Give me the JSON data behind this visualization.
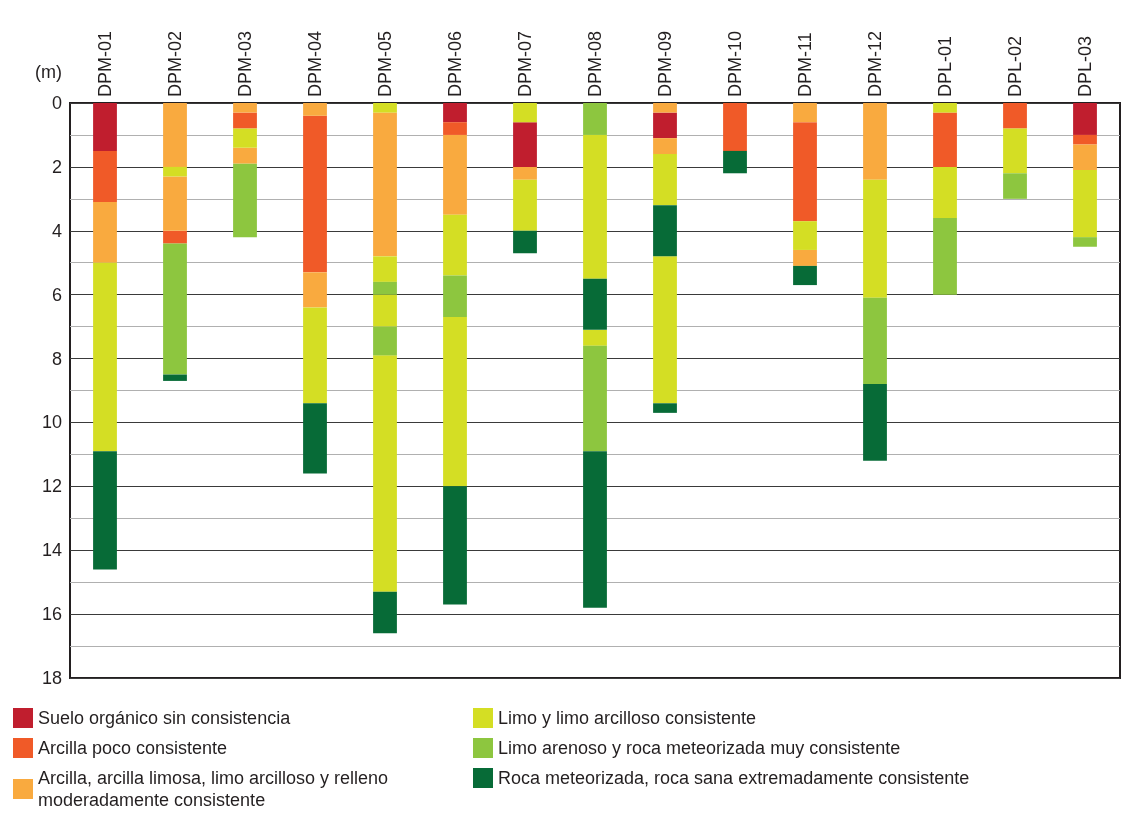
{
  "chart_data": {
    "type": "bar",
    "ylabel": "(m)",
    "categories": [
      "DPM-01",
      "DPM-02",
      "DPM-03",
      "DPM-04",
      "DPM-05",
      "DPM-06",
      "DPM-07",
      "DPM-08",
      "DPM-09",
      "DPM-10",
      "DPM-11",
      "DPM-12",
      "DPL-01",
      "DPL-02",
      "DPL-03"
    ],
    "ylim": [
      18,
      0
    ],
    "yticks": [
      0,
      {
        "value": 1,
        "label": null
      },
      2,
      {
        "value": 3,
        "label": null
      },
      4,
      {
        "value": 5,
        "label": null
      },
      6,
      {
        "value": 7,
        "label": null
      },
      8,
      {
        "value": 9,
        "label": null
      },
      10,
      {
        "value": 11,
        "label": null
      },
      12,
      {
        "value": 13,
        "label": null
      },
      14,
      {
        "value": 15,
        "label": null
      },
      16,
      {
        "value": 17,
        "label": null
      },
      18
    ],
    "grid": "y",
    "legend": "bottom",
    "series": [
      {
        "name": "Suelo orgánico sin consistencia",
        "color": "#c01e2e",
        "base": [
          0,
          null,
          null,
          null,
          null,
          0,
          0.6,
          null,
          0.3,
          null,
          null,
          null,
          null,
          null,
          0
        ],
        "values": [
          1.5,
          null,
          null,
          null,
          null,
          0.6,
          1.4,
          null,
          0.8,
          null,
          null,
          null,
          null,
          null,
          1.0
        ]
      },
      {
        "name": "Arcilla poco consistente",
        "color": "#f05a28",
        "base": [
          1.5,
          4.0,
          0.3,
          0.4,
          null,
          0.6,
          null,
          null,
          null,
          0,
          0.6,
          null,
          0.3,
          0,
          1.0
        ],
        "values": [
          1.6,
          0.4,
          0.5,
          4.9,
          null,
          0.4,
          null,
          null,
          null,
          1.5,
          3.1,
          null,
          1.7,
          0.8,
          0.3
        ]
      },
      {
        "name": "Arcilla, arcilla limosa, limo arcilloso y relleno moderadamente consistente",
        "color": "#f9aa3f",
        "base": [
          3.1,
          0,
          0,
          0,
          0.3,
          1.0,
          2.0,
          null,
          0,
          null,
          0,
          0,
          null,
          null,
          1.3
        ],
        "values": [
          1.9,
          2.0,
          0.3,
          0.4,
          4.5,
          2.5,
          0.4,
          null,
          0.3,
          null,
          0.6,
          2.4,
          null,
          null,
          0.8
        ]
      },
      {
        "color": "#f9aa3f",
        "base": [
          null,
          2.3,
          1.4,
          5.3,
          null,
          null,
          null,
          null,
          1.1,
          null,
          4.6,
          null,
          null,
          null,
          null
        ],
        "values": [
          null,
          1.7,
          0.5,
          1.1,
          null,
          null,
          null,
          null,
          0.5,
          null,
          0.5,
          null,
          null,
          null,
          null
        ]
      },
      {
        "name": "Limo y limo arcilloso consistente",
        "color": "#d4de24",
        "base": [
          5.0,
          2.0,
          0.8,
          6.4,
          0,
          3.5,
          0,
          1.0,
          1.6,
          null,
          3.7,
          2.4,
          0,
          0.8,
          2.1
        ],
        "values": [
          5.9,
          0.3,
          0.6,
          3.0,
          0.3,
          1.9,
          0.6,
          4.5,
          1.6,
          null,
          0.9,
          3.7,
          0.3,
          1.4,
          2.1
        ]
      },
      {
        "color": "#d4de24",
        "base": [
          null,
          null,
          null,
          null,
          4.8,
          6.7,
          2.4,
          7.1,
          4.8,
          null,
          null,
          null,
          2.0,
          null,
          null
        ],
        "values": [
          null,
          null,
          null,
          null,
          0.8,
          5.3,
          1.6,
          0.5,
          4.6,
          null,
          null,
          null,
          1.6,
          null,
          null
        ]
      },
      {
        "color": "#d4de24",
        "base": [
          null,
          null,
          null,
          null,
          6.0,
          null,
          null,
          null,
          null,
          null,
          null,
          null,
          null,
          null,
          null
        ],
        "values": [
          null,
          null,
          null,
          null,
          1.0,
          null,
          null,
          null,
          null,
          null,
          null,
          null,
          null,
          null,
          null
        ]
      },
      {
        "color": "#d4de24",
        "base": [
          null,
          null,
          null,
          null,
          7.9,
          null,
          null,
          null,
          null,
          null,
          null,
          null,
          null,
          null,
          null
        ],
        "values": [
          null,
          null,
          null,
          null,
          7.4,
          null,
          null,
          null,
          null,
          null,
          null,
          null,
          null,
          null,
          null
        ]
      },
      {
        "name": "Limo arenoso y roca meteorizada muy consistente",
        "color": "#8dc63f",
        "base": [
          null,
          4.4,
          1.9,
          null,
          5.6,
          5.4,
          null,
          0,
          null,
          null,
          null,
          6.1,
          3.6,
          2.2,
          4.2
        ],
        "values": [
          null,
          4.1,
          2.3,
          null,
          0.4,
          1.3,
          null,
          1.0,
          null,
          null,
          null,
          2.7,
          2.4,
          0.8,
          0.3
        ]
      },
      {
        "color": "#8dc63f",
        "base": [
          null,
          null,
          null,
          null,
          7.0,
          null,
          null,
          7.6,
          null,
          null,
          null,
          null,
          null,
          null,
          null
        ],
        "values": [
          null,
          null,
          null,
          null,
          0.9,
          null,
          null,
          3.3,
          null,
          null,
          null,
          null,
          null,
          null,
          null
        ]
      },
      {
        "name": "Roca meteorizada, roca sana extremadamente consistente",
        "color": "#076b37",
        "base": [
          10.9,
          8.5,
          null,
          9.4,
          15.3,
          12.0,
          4.0,
          5.5,
          3.2,
          1.5,
          5.1,
          8.8,
          null,
          null,
          null
        ],
        "values": [
          3.7,
          0.2,
          null,
          2.2,
          1.3,
          3.7,
          0.7,
          1.6,
          1.6,
          0.7,
          0.6,
          2.4,
          null,
          null,
          null
        ]
      },
      {
        "color": "#076b37",
        "base": [
          null,
          null,
          null,
          null,
          null,
          null,
          null,
          10.9,
          9.4,
          null,
          null,
          null,
          null,
          null,
          null
        ],
        "values": [
          null,
          null,
          null,
          null,
          null,
          null,
          null,
          4.9,
          0.3,
          null,
          null,
          null,
          null,
          null,
          null
        ]
      }
    ]
  }
}
